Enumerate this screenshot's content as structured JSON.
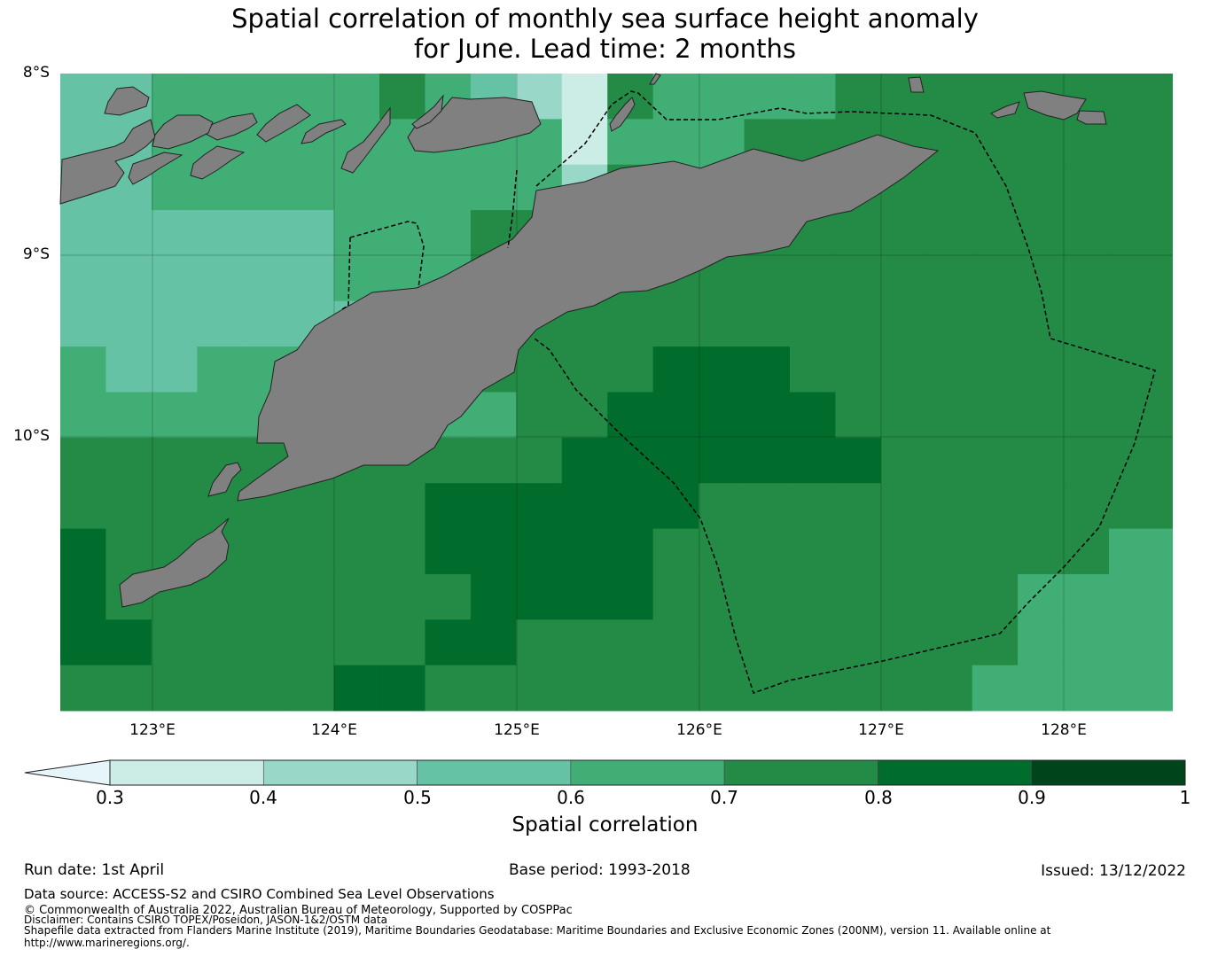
{
  "title_line1": "Spatial correlation of monthly sea surface height anomaly",
  "title_line2": "for June. Lead time: 2 months",
  "lat_labels": [
    "8°S",
    "9°S",
    "10°S"
  ],
  "lon_labels": [
    "123°E",
    "124°E",
    "125°E",
    "126°E",
    "127°E",
    "128°E"
  ],
  "colorbar": {
    "label": "Spatial correlation",
    "ticks": [
      "0.3",
      "0.4",
      "0.5",
      "0.6",
      "0.7",
      "0.8",
      "0.9",
      "1"
    ],
    "colors": [
      "#e5f5f9",
      "#ccece6",
      "#99d8c9",
      "#66c2a4",
      "#41ae76",
      "#238b45",
      "#006d2c",
      "#00441b"
    ],
    "extend": "min"
  },
  "land_color": "#808080",
  "footer": {
    "run_date": "Run date: 1st April",
    "base_period": "Base period: 1993-2018",
    "issued": "Issued: 13/12/2022",
    "data_source": "Data source: ACCESS-S2 and CSIRO Combined Sea Level Observations",
    "copyright": "© Commonwealth of Australia 2022, Australian Bureau of Meteorology, Supported by COSPPac",
    "disclaimer": "Disclaimer: Contains CSIRO TOPEX/Poseidon, JASON-1&2/OSTM data",
    "shapefile_line1": "Shapefile data extracted from Flanders Marine Institute (2019), Maritime Boundaries Geodatabase: Maritime Boundaries and Exclusive Economic Zones (200NM), version 11. Available online at",
    "shapefile_line2": "http://www.marineregions.org/."
  }
}
